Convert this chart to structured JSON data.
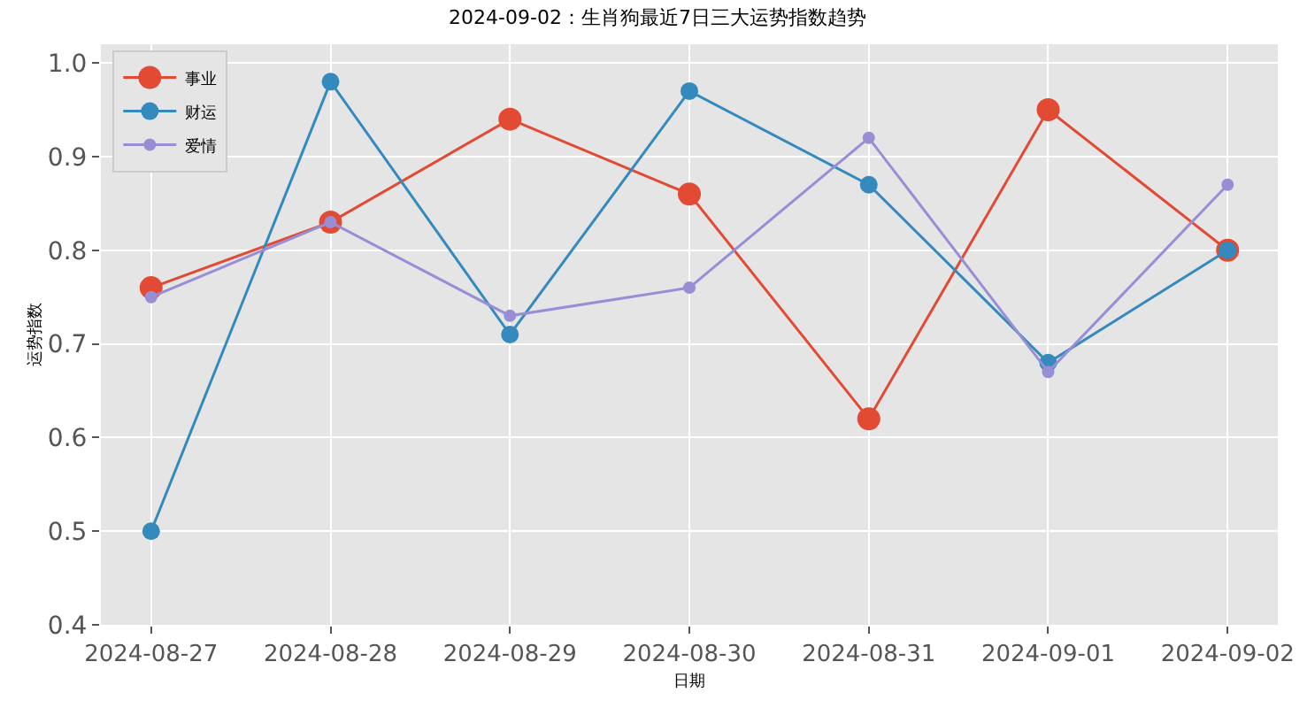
{
  "chart_data": {
    "type": "line",
    "title": "2024-09-02：生肖狗最近7日三大运势指数趋势",
    "xlabel": "日期",
    "ylabel": "运势指数",
    "categories": [
      "2024-08-27",
      "2024-08-28",
      "2024-08-29",
      "2024-08-30",
      "2024-08-31",
      "2024-09-01",
      "2024-09-02"
    ],
    "series": [
      {
        "name": "事业",
        "color": "#e24a33",
        "values": [
          0.76,
          0.83,
          0.94,
          0.86,
          0.62,
          0.95,
          0.8
        ]
      },
      {
        "name": "财运",
        "color": "#348abd",
        "values": [
          0.5,
          0.98,
          0.71,
          0.97,
          0.87,
          0.68,
          0.8
        ]
      },
      {
        "name": "爱情",
        "color": "#988ed5",
        "values": [
          0.75,
          0.83,
          0.73,
          0.76,
          0.92,
          0.67,
          0.87
        ]
      }
    ],
    "ylim": [
      0.4,
      1.02
    ],
    "yticks": [
      {
        "value": 0.4,
        "label": "0.4"
      },
      {
        "value": 0.5,
        "label": "0.5"
      },
      {
        "value": 0.6,
        "label": "0.6"
      },
      {
        "value": 0.7,
        "label": "0.7"
      },
      {
        "value": 0.8,
        "label": "0.8"
      },
      {
        "value": 0.9,
        "label": "0.9"
      },
      {
        "value": 1.0,
        "label": "1.0"
      }
    ],
    "grid": true,
    "legend": "top left",
    "marker": "circle",
    "line_style": "solid"
  }
}
